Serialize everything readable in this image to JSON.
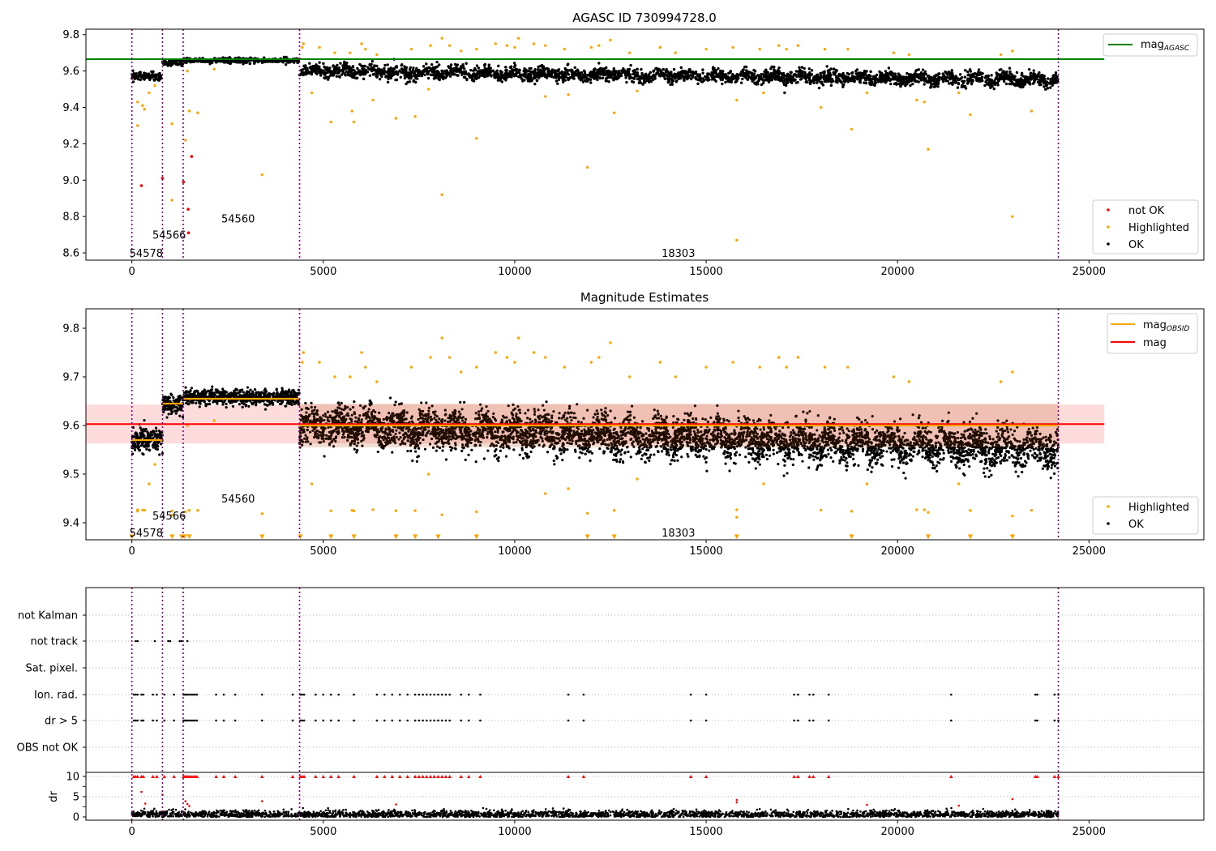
{
  "figure": {
    "title": "AGASC ID 730994728.0"
  },
  "colors": {
    "ok": "#000000",
    "highlighted": "#ffa500",
    "not_ok": "#ff0000",
    "agasc_line": "#008000",
    "mag_line": "#ff0000",
    "obsid_line": "#ffa500",
    "boundary": "#800080",
    "band": "#ffc0c0",
    "obsid_band": "#ffd5b0"
  },
  "chart_data": [
    {
      "type": "scatter",
      "title": "AGASC ID 730994728.0",
      "xlabel": "",
      "ylabel": "",
      "xlim": [
        -1200,
        28000
      ],
      "ylim": [
        8.56,
        9.83
      ],
      "xticks": [
        0,
        5000,
        10000,
        15000,
        20000,
        25000
      ],
      "yticks": [
        8.6,
        8.8,
        9.0,
        9.2,
        9.4,
        9.6,
        9.8
      ],
      "grid": false,
      "legend_upper": {
        "position": "top-right",
        "entries": [
          {
            "label": "mag",
            "sub": "AGASC",
            "color": "#008000",
            "kind": "line"
          }
        ]
      },
      "legend_lower": {
        "position": "bottom-right",
        "entries": [
          {
            "label": "not OK",
            "color": "#ff0000",
            "kind": "dot"
          },
          {
            "label": "Highlighted",
            "color": "#ffa500",
            "kind": "dot"
          },
          {
            "label": "OK",
            "color": "#000000",
            "kind": "dot"
          }
        ]
      },
      "mag_agasc": 9.665,
      "obsid_boundaries": [
        0,
        800,
        1340,
        4380,
        24200
      ],
      "obsid_labels": [
        {
          "text": "54578",
          "x": 0,
          "y": 8.6
        },
        {
          "text": "54566",
          "x": 600,
          "y": 8.7
        },
        {
          "text": "54560",
          "x": 2400,
          "y": 8.79
        },
        {
          "text": "18303",
          "x": 13900,
          "y": 8.6
        }
      ],
      "series": [
        {
          "name": "OK",
          "color": "#000000",
          "segments": [
            {
              "x": [
                0,
                800
              ],
              "mean": 9.57,
              "spread": 0.025
            },
            {
              "x": [
                800,
                1340
              ],
              "mean": 9.645,
              "spread": 0.018
            },
            {
              "x": [
                1340,
                4380
              ],
              "mean": 9.658,
              "spread": 0.015
            },
            {
              "x": [
                4380,
                24200
              ],
              "mean_start": 9.6,
              "mean_end": 9.55,
              "spread": 0.04
            }
          ]
        },
        {
          "name": "Highlighted",
          "color": "#ffa500",
          "points": [
            [
              150,
              9.43
            ],
            [
              280,
              9.41
            ],
            [
              330,
              9.39
            ],
            [
              450,
              9.48
            ],
            [
              150,
              9.3
            ],
            [
              600,
              9.52
            ],
            [
              1050,
              9.31
            ],
            [
              1050,
              8.89
            ],
            [
              1400,
              9.22
            ],
            [
              1450,
              9.6
            ],
            [
              1500,
              9.38
            ],
            [
              1720,
              9.37
            ],
            [
              2150,
              9.61
            ],
            [
              3400,
              9.03
            ],
            [
              4700,
              9.48
            ],
            [
              5200,
              9.32
            ],
            [
              5750,
              9.38
            ],
            [
              5800,
              9.32
            ],
            [
              6300,
              9.44
            ],
            [
              6900,
              9.34
            ],
            [
              7400,
              9.35
            ],
            [
              7750,
              9.5
            ],
            [
              8100,
              8.92
            ],
            [
              9000,
              9.23
            ],
            [
              10800,
              9.46
            ],
            [
              11400,
              9.47
            ],
            [
              11900,
              9.07
            ],
            [
              12600,
              9.37
            ],
            [
              13200,
              9.49
            ],
            [
              15800,
              9.44
            ],
            [
              15800,
              8.67
            ],
            [
              16500,
              9.48
            ],
            [
              18000,
              9.4
            ],
            [
              18800,
              9.28
            ],
            [
              19200,
              9.48
            ],
            [
              20500,
              9.44
            ],
            [
              20700,
              9.43
            ],
            [
              20800,
              9.17
            ],
            [
              21600,
              9.48
            ],
            [
              21900,
              9.36
            ],
            [
              23000,
              8.8
            ],
            [
              23500,
              9.38
            ],
            [
              4450,
              9.73
            ],
            [
              4480,
              9.75
            ],
            [
              4900,
              9.73
            ],
            [
              5300,
              9.7
            ],
            [
              5700,
              9.7
            ],
            [
              6000,
              9.75
            ],
            [
              6100,
              9.72
            ],
            [
              6400,
              9.69
            ],
            [
              7300,
              9.72
            ],
            [
              7800,
              9.74
            ],
            [
              8100,
              9.78
            ],
            [
              8300,
              9.74
            ],
            [
              8600,
              9.71
            ],
            [
              9000,
              9.72
            ],
            [
              9500,
              9.75
            ],
            [
              9800,
              9.74
            ],
            [
              10000,
              9.73
            ],
            [
              10100,
              9.78
            ],
            [
              10800,
              9.74
            ],
            [
              11300,
              9.72
            ],
            [
              12200,
              9.74
            ],
            [
              12500,
              9.77
            ],
            [
              13000,
              9.7
            ],
            [
              13800,
              9.73
            ],
            [
              14200,
              9.7
            ],
            [
              15000,
              9.72
            ],
            [
              15700,
              9.73
            ],
            [
              16400,
              9.72
            ],
            [
              16900,
              9.74
            ],
            [
              17100,
              9.72
            ],
            [
              17400,
              9.74
            ],
            [
              18100,
              9.72
            ],
            [
              18700,
              9.72
            ],
            [
              19900,
              9.7
            ],
            [
              20300,
              9.69
            ],
            [
              22700,
              9.69
            ],
            [
              23000,
              9.71
            ],
            [
              10500,
              9.75
            ],
            [
              12000,
              9.73
            ]
          ]
        },
        {
          "name": "not OK",
          "color": "#ff0000",
          "points": [
            [
              250,
              8.97
            ],
            [
              800,
              9.01
            ],
            [
              1350,
              8.99
            ],
            [
              1470,
              8.84
            ],
            [
              1560,
              9.13
            ],
            [
              1480,
              8.71
            ]
          ]
        }
      ]
    },
    {
      "type": "scatter",
      "title": "Magnitude Estimates",
      "xlabel": "",
      "ylabel": "",
      "xlim": [
        -1200,
        28000
      ],
      "ylim": [
        9.365,
        9.84
      ],
      "xticks": [
        0,
        5000,
        10000,
        15000,
        20000,
        25000
      ],
      "yticks": [
        9.4,
        9.5,
        9.6,
        9.7,
        9.8
      ],
      "grid": false,
      "legend_upper": {
        "position": "top-right",
        "entries": [
          {
            "label": "mag",
            "sub": "OBSID",
            "color": "#ffa500",
            "kind": "line"
          },
          {
            "label": "mag",
            "sub": "",
            "color": "#ff0000",
            "kind": "line"
          }
        ]
      },
      "legend_lower": {
        "position": "bottom-right",
        "entries": [
          {
            "label": "Highlighted",
            "color": "#ffa500",
            "kind": "dot"
          },
          {
            "label": "OK",
            "color": "#000000",
            "kind": "dot"
          }
        ]
      },
      "mag": 9.603,
      "mag_band": [
        9.563,
        9.643
      ],
      "obsid_mags": [
        {
          "x": [
            0,
            800
          ],
          "mag": 9.57
        },
        {
          "x": [
            800,
            1340
          ],
          "mag": 9.645
        },
        {
          "x": [
            1340,
            4380
          ],
          "mag": 9.655
        },
        {
          "x": [
            4380,
            24200
          ],
          "mag": 9.6
        }
      ],
      "obsid_boundaries": [
        0,
        800,
        1340,
        4380,
        24200
      ],
      "obsid_labels": [
        {
          "text": "54578",
          "x": 0,
          "y": 9.38
        },
        {
          "text": "54566",
          "x": 600,
          "y": 9.415
        },
        {
          "text": "54560",
          "x": 2400,
          "y": 9.45
        },
        {
          "text": "18303",
          "x": 13900,
          "y": 9.38
        }
      ],
      "lower_markers_x": [
        0,
        1050,
        1300,
        1380,
        1500,
        3400,
        4400,
        5200,
        5800,
        6900,
        7400,
        8000,
        9000,
        11900,
        12600,
        15800,
        18800,
        20800,
        21900,
        23000
      ]
    },
    {
      "type": "scatter",
      "title": "",
      "xlim": [
        -1200,
        28000
      ],
      "xticks": [
        0,
        5000,
        10000,
        15000,
        20000,
        25000
      ],
      "categories": [
        "not Kalman",
        "not track",
        "Sat. pixel.",
        "Ion. rad.",
        "dr > 5",
        "OBS not OK"
      ],
      "flag_points": {
        "not track": [
          100,
          150,
          600,
          950,
          1000,
          1250,
          1300,
          1450
        ],
        "Ion. rad.": [
          50,
          100,
          150,
          250,
          300,
          550,
          650,
          850,
          1100,
          1350,
          1380,
          1420,
          1450,
          1500,
          1550,
          1600,
          1650,
          1700,
          2200,
          2400,
          2700,
          3400,
          4200,
          4400,
          4450,
          4500,
          4800,
          5000,
          5200,
          5400,
          5800,
          6400,
          6600,
          6800,
          7000,
          7200,
          7400,
          7500,
          7600,
          7700,
          7800,
          7900,
          8000,
          8100,
          8200,
          8300,
          8600,
          8800,
          9100,
          11400,
          11800,
          14600,
          15000,
          17300,
          17400,
          17700,
          17800,
          18200,
          21400,
          23600,
          23650,
          24100,
          24200
        ],
        "dr > 5": [
          50,
          100,
          150,
          250,
          300,
          550,
          650,
          850,
          1100,
          1350,
          1380,
          1420,
          1450,
          1500,
          1550,
          1600,
          1650,
          1700,
          2200,
          2400,
          2700,
          3400,
          4200,
          4400,
          4450,
          4500,
          4800,
          5000,
          5200,
          5400,
          5800,
          6400,
          6600,
          6800,
          7000,
          7200,
          7400,
          7500,
          7600,
          7700,
          7800,
          7900,
          8000,
          8100,
          8200,
          8300,
          8600,
          8800,
          9100,
          11400,
          11800,
          14600,
          15000,
          17300,
          17400,
          17700,
          17800,
          18200,
          21400,
          23600,
          23650,
          24100,
          24200
        ]
      },
      "dr_panel": {
        "ylabel": "dr",
        "yticks": [
          0,
          5,
          10
        ],
        "ylim": [
          -0.8,
          11
        ],
        "cap": 10,
        "outliers": [
          [
            250,
            6.2
          ],
          [
            350,
            3.3
          ],
          [
            800,
            5.5
          ],
          [
            1400,
            3.9
          ],
          [
            1450,
            3.2
          ],
          [
            1500,
            2.7
          ],
          [
            3400,
            3.9
          ],
          [
            6900,
            3.1
          ],
          [
            15800,
            3.6
          ],
          [
            15800,
            4.2
          ],
          [
            19200,
            3.0
          ],
          [
            21600,
            2.8
          ],
          [
            23000,
            4.4
          ]
        ]
      }
    }
  ]
}
